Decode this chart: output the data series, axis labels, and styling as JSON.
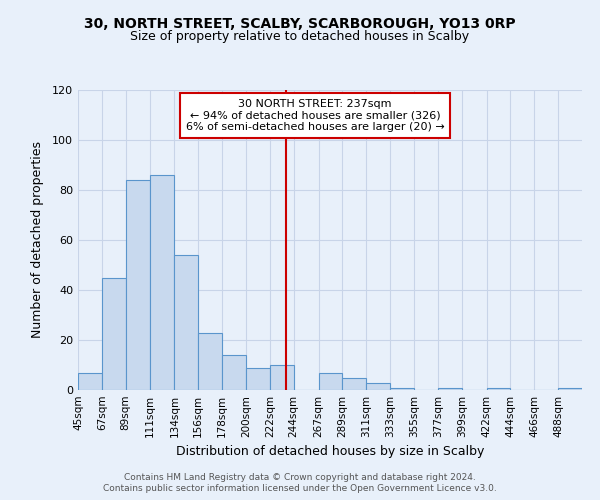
{
  "title": "30, NORTH STREET, SCALBY, SCARBOROUGH, YO13 0RP",
  "subtitle": "Size of property relative to detached houses in Scalby",
  "xlabel": "Distribution of detached houses by size in Scalby",
  "ylabel": "Number of detached properties",
  "bin_labels": [
    "45sqm",
    "67sqm",
    "89sqm",
    "111sqm",
    "134sqm",
    "156sqm",
    "178sqm",
    "200sqm",
    "222sqm",
    "244sqm",
    "267sqm",
    "289sqm",
    "311sqm",
    "333sqm",
    "355sqm",
    "377sqm",
    "399sqm",
    "422sqm",
    "444sqm",
    "466sqm",
    "488sqm"
  ],
  "bin_edges": [
    45,
    67,
    89,
    111,
    134,
    156,
    178,
    200,
    222,
    244,
    267,
    289,
    311,
    333,
    355,
    377,
    399,
    422,
    444,
    466,
    488,
    510
  ],
  "bar_heights": [
    7,
    45,
    84,
    86,
    54,
    23,
    14,
    9,
    10,
    0,
    7,
    5,
    3,
    1,
    0,
    1,
    0,
    1,
    0,
    0,
    1
  ],
  "bar_color": "#c8d9ee",
  "bar_edge_color": "#5a95cc",
  "vline_x": 237,
  "vline_color": "#cc0000",
  "annotation_title": "30 NORTH STREET: 237sqm",
  "annotation_line1": "← 94% of detached houses are smaller (326)",
  "annotation_line2": "6% of semi-detached houses are larger (20) →",
  "annotation_box_edge": "#cc0000",
  "ylim": [
    0,
    120
  ],
  "yticks": [
    0,
    20,
    40,
    60,
    80,
    100,
    120
  ],
  "footer1": "Contains HM Land Registry data © Crown copyright and database right 2024.",
  "footer2": "Contains public sector information licensed under the Open Government Licence v3.0.",
  "bg_color": "#e8f0fa",
  "plot_bg_color": "#e8f0fa",
  "grid_color": "#c8d4e8"
}
